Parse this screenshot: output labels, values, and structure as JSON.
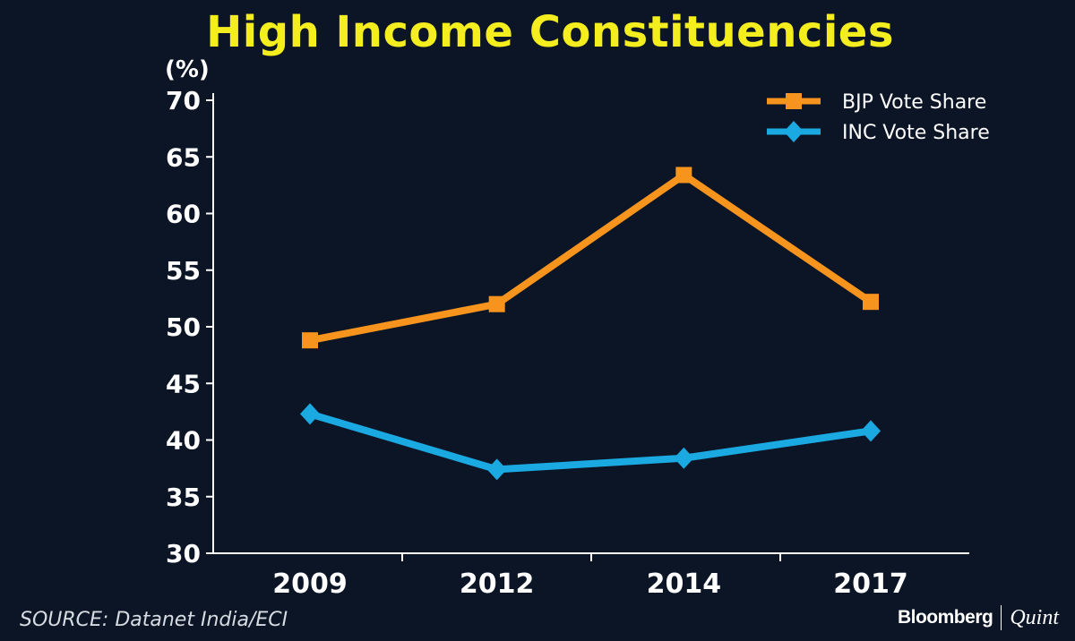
{
  "chart_data": {
    "type": "line",
    "title": "High Income Constituencies",
    "ylabel": "(%)",
    "xlabel": "",
    "categories": [
      "2009",
      "2012",
      "2014",
      "2017"
    ],
    "ylim": [
      30,
      70
    ],
    "yticks": [
      30,
      35,
      40,
      45,
      50,
      55,
      60,
      65,
      70
    ],
    "series": [
      {
        "name": "BJP Vote Share",
        "color": "#f7941d",
        "marker": "square",
        "values": [
          48.8,
          52.0,
          63.4,
          52.2
        ]
      },
      {
        "name": "INC Vote Share",
        "color": "#1ba9e1",
        "marker": "diamond",
        "values": [
          42.3,
          37.4,
          38.4,
          40.8
        ]
      }
    ],
    "legend_position": "top-right",
    "grid": false
  },
  "footer": {
    "source": "SOURCE: Datanet India/ECI",
    "brand_primary": "Bloomberg",
    "brand_secondary": "Quint"
  }
}
